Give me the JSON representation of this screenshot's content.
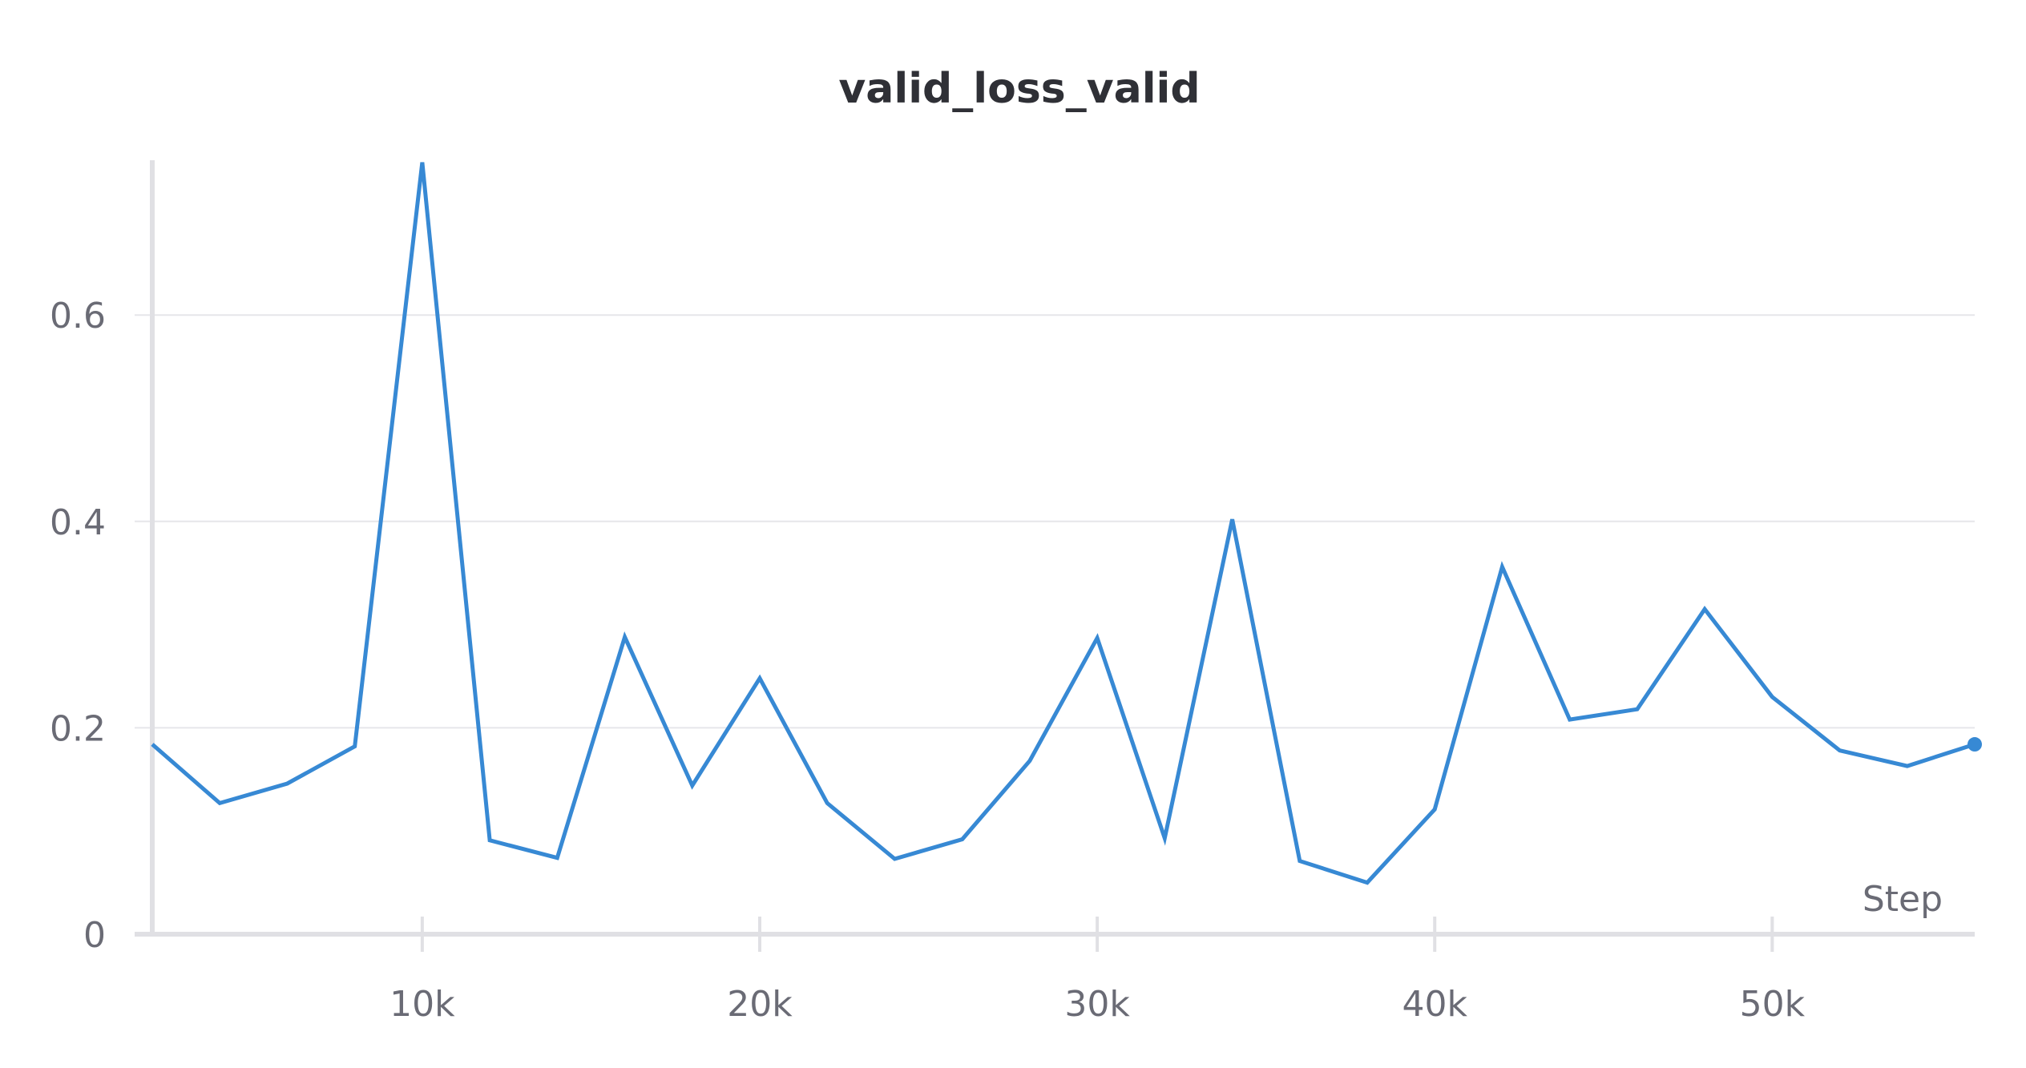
{
  "chart_data": {
    "type": "line",
    "title": "valid_loss_valid",
    "xlabel": "Step",
    "ylabel": "",
    "xlim": [
      2000,
      56000
    ],
    "ylim": [
      0,
      0.75
    ],
    "x_ticks": [
      10000,
      20000,
      30000,
      40000,
      50000
    ],
    "x_tick_labels": [
      "10k",
      "20k",
      "30k",
      "40k",
      "50k"
    ],
    "y_ticks": [
      0,
      0.2,
      0.4,
      0.6
    ],
    "y_tick_labels": [
      "0",
      "0.2",
      "0.4",
      "0.6"
    ],
    "grid": true,
    "line_color": "#3789d4",
    "series": [
      {
        "x": [
          2000,
          4000,
          6000,
          8000,
          10000,
          12000,
          14000,
          16000,
          18000,
          20000,
          22000,
          24000,
          26000,
          28000,
          30000,
          32000,
          34000,
          36000,
          38000,
          40000,
          42000,
          44000,
          46000,
          48000,
          50000,
          52000,
          54000,
          56000
        ],
        "values": [
          0.184,
          0.127,
          0.146,
          0.182,
          0.748,
          0.091,
          0.074,
          0.288,
          0.144,
          0.248,
          0.127,
          0.073,
          0.092,
          0.168,
          0.287,
          0.093,
          0.402,
          0.071,
          0.05,
          0.121,
          0.356,
          0.208,
          0.218,
          0.315,
          0.23,
          0.178,
          0.163,
          0.184
        ]
      }
    ]
  }
}
